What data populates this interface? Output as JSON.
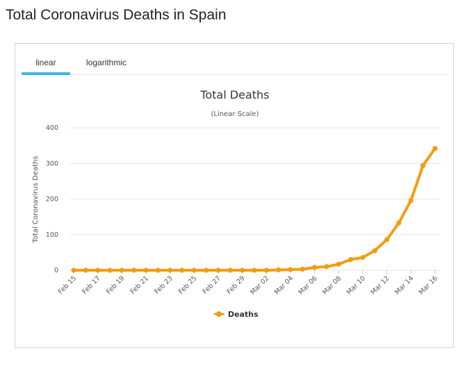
{
  "page": {
    "title": "Total Coronavirus Deaths in Spain"
  },
  "tabs": [
    {
      "label": "linear",
      "active": true
    },
    {
      "label": "logarithmic",
      "active": false
    }
  ],
  "colors": {
    "series": "#f39c12",
    "tab_underline": "#3bb8e8",
    "grid": "#e6e6e6"
  },
  "chart_data": {
    "type": "line",
    "title": "Total Deaths",
    "subtitle": "(Linear Scale)",
    "xlabel": "",
    "ylabel": "Total Coronavirus Deaths",
    "ylim": [
      0,
      400
    ],
    "yticks": [
      0,
      100,
      200,
      300,
      400
    ],
    "grid": true,
    "legend_position": "bottom-center",
    "x": [
      "Feb 15",
      "Feb 16",
      "Feb 17",
      "Feb 18",
      "Feb 19",
      "Feb 20",
      "Feb 21",
      "Feb 22",
      "Feb 23",
      "Feb 24",
      "Feb 25",
      "Feb 26",
      "Feb 27",
      "Feb 28",
      "Feb 29",
      "Mar 01",
      "Mar 02",
      "Mar 03",
      "Mar 04",
      "Mar 05",
      "Mar 06",
      "Mar 07",
      "Mar 08",
      "Mar 09",
      "Mar 10",
      "Mar 11",
      "Mar 12",
      "Mar 13",
      "Mar 14",
      "Mar 15",
      "Mar 16"
    ],
    "x_tick_labels": [
      "Feb 15",
      "Feb 17",
      "Feb 19",
      "Feb 21",
      "Feb 23",
      "Feb 25",
      "Feb 27",
      "Feb 29",
      "Mar 02",
      "Mar 04",
      "Mar 06",
      "Mar 08",
      "Mar 10",
      "Mar 12",
      "Mar 14",
      "Mar 16"
    ],
    "series": [
      {
        "name": "Deaths",
        "values": [
          0,
          0,
          0,
          0,
          0,
          0,
          0,
          0,
          0,
          0,
          0,
          0,
          0,
          0,
          0,
          0,
          0,
          1,
          2,
          3,
          8,
          10,
          17,
          30,
          36,
          55,
          86,
          133,
          196,
          294,
          342
        ]
      }
    ]
  }
}
